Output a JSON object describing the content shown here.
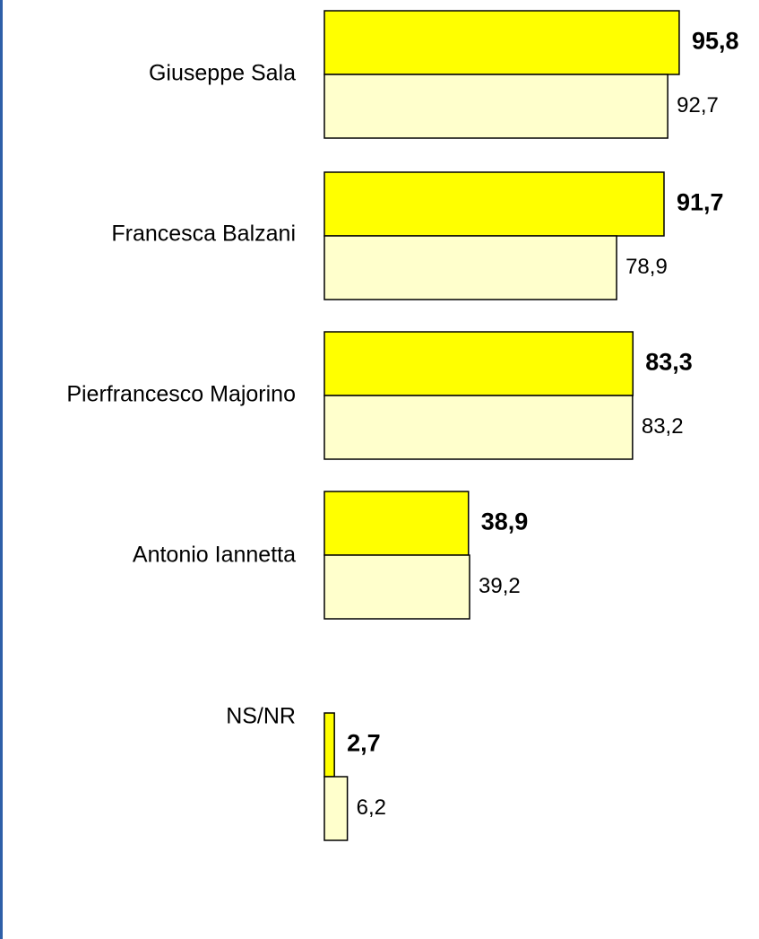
{
  "chart_data": {
    "type": "hbar-grouped",
    "categories": [
      "Giuseppe Sala",
      "Francesca Balzani",
      "Pierfrancesco Majorino",
      "Antonio Iannetta",
      "NS/NR"
    ],
    "series": [
      {
        "color": "#ffff00",
        "values": [
          95.8,
          91.7,
          83.3,
          38.9,
          2.7
        ],
        "value_labels": [
          "95,8",
          "91,7",
          "83,3",
          "38,9",
          "2,7"
        ]
      },
      {
        "color": "#ffffcc",
        "values": [
          92.7,
          78.9,
          83.2,
          39.2,
          6.2
        ],
        "value_labels": [
          "92,7",
          "78,9",
          "83,2",
          "39,2",
          "6,2"
        ]
      }
    ]
  }
}
